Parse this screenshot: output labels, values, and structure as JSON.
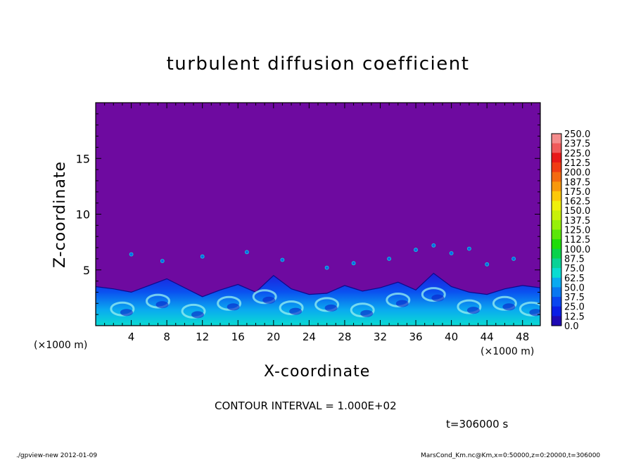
{
  "chart_data": {
    "type": "heatmap",
    "title": "turbulent diffusion coefficient",
    "xlabel": "X-coordinate",
    "ylabel": "Z-coordinate",
    "x_unit": "(×1000 m)",
    "y_unit": "(×1000 m)",
    "xlim": [
      0,
      50
    ],
    "ylim": [
      0,
      20
    ],
    "x_ticks": [
      4,
      8,
      12,
      16,
      20,
      24,
      28,
      32,
      36,
      40,
      44,
      48
    ],
    "y_ticks": [
      5,
      10,
      15
    ],
    "colorbar": {
      "levels": [
        "250.0",
        "237.5",
        "225.0",
        "212.5",
        "200.0",
        "187.5",
        "175.0",
        "162.5",
        "150.0",
        "137.5",
        "125.0",
        "112.5",
        "100.0",
        "87.5",
        "75.0",
        "62.5",
        "50.0",
        "37.5",
        "25.0",
        "12.5",
        "0.0"
      ],
      "colors": [
        "#f48c8c",
        "#f05a5a",
        "#e81818",
        "#f03c14",
        "#f46a10",
        "#f8980c",
        "#fcc808",
        "#f0f00a",
        "#c8f00a",
        "#96f00a",
        "#5ae60a",
        "#1edc0a",
        "#0ad24b",
        "#0ad296",
        "#0adcd2",
        "#0aaaf0",
        "#0a78f0",
        "#0a46f0",
        "#0a1ee6",
        "#1e0ab4",
        "#6e0a96"
      ]
    },
    "background_value": 0.0,
    "profile": {
      "description_points_x": [
        0,
        2,
        4,
        6,
        8,
        10,
        12,
        14,
        16,
        18,
        20,
        22,
        24,
        26,
        28,
        30,
        32,
        34,
        36,
        38,
        40,
        42,
        44,
        46,
        48,
        50
      ],
      "turbulent_top_km": [
        3.5,
        3.3,
        3.0,
        3.6,
        4.2,
        3.4,
        2.6,
        3.2,
        3.7,
        3.0,
        4.5,
        3.3,
        2.8,
        2.9,
        3.6,
        3.1,
        3.4,
        3.9,
        3.2,
        4.7,
        3.5,
        3.0,
        2.8,
        3.3,
        3.6,
        3.4
      ]
    }
  },
  "labels": {
    "contour_interval": "CONTOUR INTERVAL = 1.000E+02",
    "time": "t=306000 s",
    "program": "./gpview-new   2012-01-09",
    "source": "MarsCond_Km.nc@Km,x=0:50000,z=0:20000,t=306000"
  }
}
